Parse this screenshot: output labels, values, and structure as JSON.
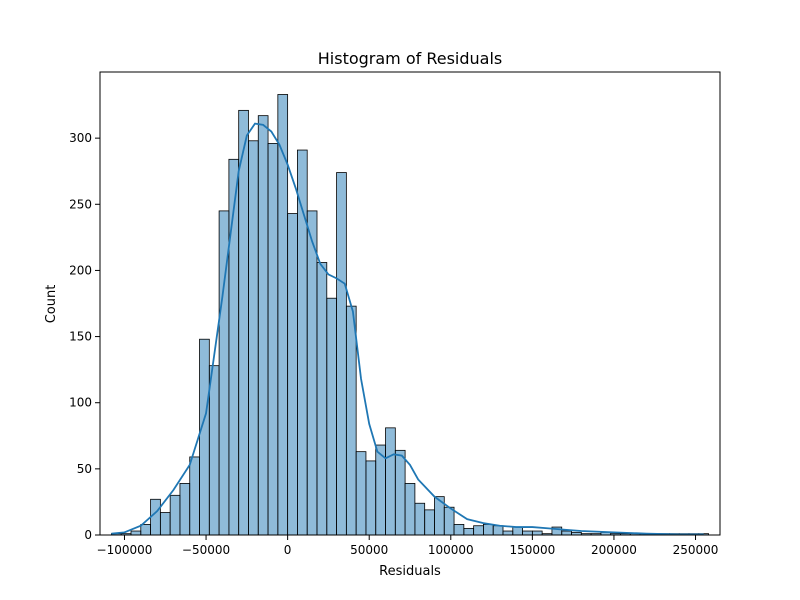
{
  "chart_data": {
    "type": "bar",
    "title": "Histogram of Residuals",
    "xlabel": "Residuals",
    "ylabel": "Count",
    "xlim": [
      -115000,
      265000
    ],
    "ylim": [
      0,
      350
    ],
    "xticks": [
      -100000,
      -50000,
      0,
      50000,
      100000,
      150000,
      200000,
      250000
    ],
    "yticks": [
      0,
      50,
      100,
      150,
      200,
      250,
      300
    ],
    "grid": false,
    "bin_edges": [
      -108000,
      -102000,
      -96000,
      -90000,
      -84000,
      -78000,
      -72000,
      -66000,
      -60000,
      -54000,
      -48000,
      -42000,
      -36000,
      -30000,
      -24000,
      -18000,
      -12000,
      -6000,
      0,
      6000,
      12000,
      18000,
      24000,
      30000,
      36000,
      42000,
      48000,
      54000,
      60000,
      66000,
      72000,
      78000,
      84000,
      90000,
      96000,
      102000,
      108000,
      114000,
      120000,
      126000,
      132000,
      138000,
      144000,
      150000,
      156000,
      162000,
      168000,
      174000,
      180000,
      186000,
      192000,
      198000,
      204000,
      210000,
      216000,
      222000,
      228000,
      234000,
      240000,
      246000,
      252000,
      258000
    ],
    "counts": [
      1,
      1,
      3,
      8,
      27,
      17,
      30,
      39,
      59,
      148,
      128,
      245,
      284,
      321,
      298,
      317,
      296,
      333,
      243,
      291,
      245,
      206,
      179,
      274,
      173,
      63,
      56,
      68,
      81,
      64,
      39,
      24,
      19,
      29,
      21,
      8,
      5,
      7,
      8,
      7,
      3,
      6,
      3,
      3,
      1,
      6,
      3,
      2,
      1,
      1,
      2,
      1,
      1,
      1,
      1,
      1,
      1,
      1,
      1,
      1,
      1
    ],
    "kde": {
      "x": [
        -108000,
        -100000,
        -90000,
        -80000,
        -70000,
        -60000,
        -50000,
        -40000,
        -30000,
        -25000,
        -20000,
        -15000,
        -10000,
        -5000,
        0,
        5000,
        10000,
        15000,
        20000,
        25000,
        30000,
        35000,
        40000,
        45000,
        50000,
        55000,
        60000,
        65000,
        70000,
        75000,
        80000,
        90000,
        100000,
        110000,
        120000,
        130000,
        140000,
        150000,
        160000,
        170000,
        180000,
        200000,
        220000,
        240000,
        255000
      ],
      "y": [
        1,
        2,
        7,
        18,
        34,
        53,
        92,
        180,
        275,
        302,
        311,
        310,
        305,
        295,
        280,
        262,
        242,
        222,
        205,
        197,
        194,
        190,
        169,
        118,
        84,
        63,
        58,
        61,
        60,
        53,
        42,
        29,
        20,
        12,
        9,
        7,
        6,
        6,
        5,
        4,
        3,
        2,
        1,
        0.5,
        0.5
      ]
    }
  }
}
